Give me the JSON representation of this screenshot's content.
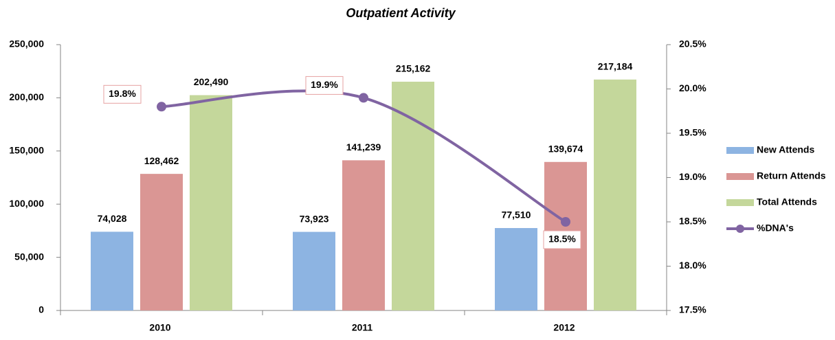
{
  "chart_data": {
    "type": "bar",
    "title": "Outpatient Activity",
    "categories": [
      "2010",
      "2011",
      "2012"
    ],
    "series": [
      {
        "name": "New Attends",
        "color": "#8db4e2",
        "values": [
          74028,
          73923,
          77510
        ],
        "value_labels": [
          "74,028",
          "73,923",
          "77,510"
        ]
      },
      {
        "name": "Return Attends",
        "color": "#da9694",
        "values": [
          128462,
          141239,
          139674
        ],
        "value_labels": [
          "128,462",
          "141,239",
          "139,674"
        ]
      },
      {
        "name": "Total Attends",
        "color": "#c4d79b",
        "values": [
          202490,
          215162,
          217184
        ],
        "value_labels": [
          "202,490",
          "215,162",
          "217,184"
        ]
      },
      {
        "name": "%DNA's",
        "type": "line",
        "axis": "y2",
        "color": "#8064a2",
        "values": [
          19.8,
          19.9,
          18.5
        ],
        "value_labels": [
          "19.8%",
          "19.9%",
          "18.5%"
        ]
      }
    ],
    "ylim": [
      0,
      250000
    ],
    "yticks": [
      0,
      {
        "value": 50000,
        "label": "50,000"
      },
      {
        "value": 100000,
        "label": "100,000"
      },
      {
        "value": 150000,
        "label": "150,000"
      },
      {
        "value": 200000,
        "label": "200,000"
      },
      {
        "value": 250000,
        "label": "250,000"
      }
    ],
    "y2lim": [
      17.5,
      20.5
    ],
    "y2ticks": [
      {
        "value": 17.5,
        "label": "17.5%"
      },
      {
        "value": 18,
        "label": "18.0%"
      },
      {
        "value": 18.5,
        "label": "18.5%"
      },
      {
        "value": 19,
        "label": "19.0%"
      },
      {
        "value": 19.5,
        "label": "19.5%"
      },
      {
        "value": 20,
        "label": "20.0%"
      },
      {
        "value": 20.5,
        "label": "20.5%"
      }
    ],
    "grid": false,
    "legend": "right"
  }
}
